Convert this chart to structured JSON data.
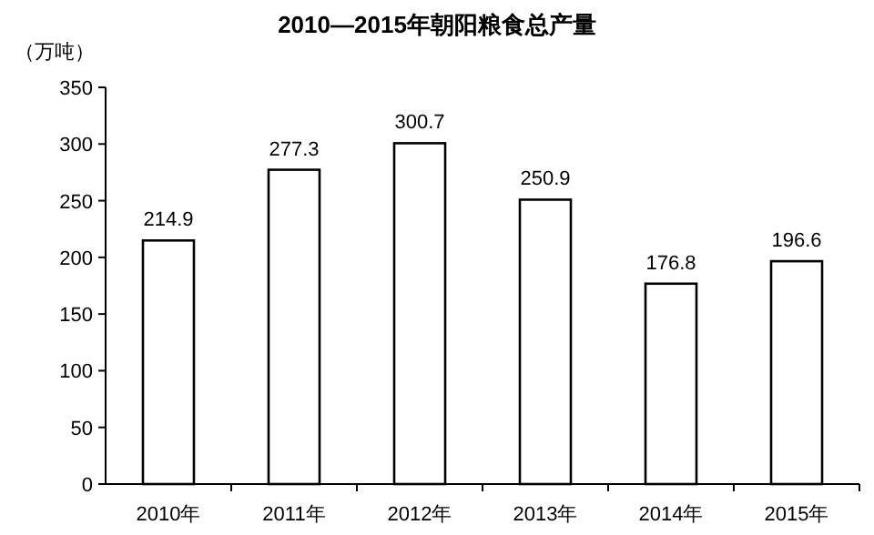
{
  "chart_data": {
    "type": "bar",
    "title": "2010—2015年朝阳粮食总产量",
    "ylabel": "（万吨）",
    "categories": [
      "2010年",
      "2011年",
      "2012年",
      "2013年",
      "2014年",
      "2015年"
    ],
    "series": [
      {
        "color": "#ffffff",
        "values": [
          214.9,
          277.3,
          300.7,
          250.9,
          176.8,
          196.6
        ]
      }
    ],
    "ylim": [
      0,
      350
    ],
    "yticks": [
      0,
      50,
      100,
      150,
      200,
      250,
      300,
      350
    ],
    "data_labels": true,
    "grid": false
  }
}
